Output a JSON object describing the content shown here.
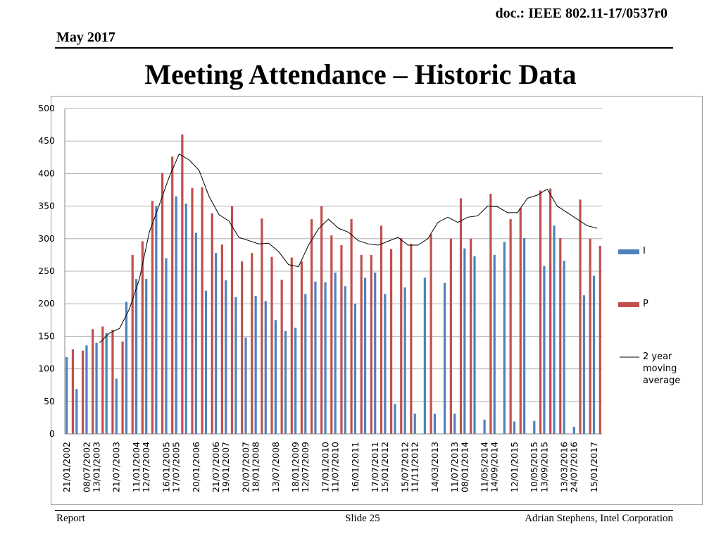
{
  "header": {
    "doc": "doc.: IEEE 802.11-17/0537r0",
    "date": "May 2017"
  },
  "title": "Meeting Attendance – Historic Data",
  "footer": {
    "left": "Report",
    "center": "Slide 25",
    "right": "Adrian Stephens, Intel Corporation"
  },
  "chart_data": {
    "type": "bar",
    "categories": [
      "21/01/2002",
      null,
      "08/07/2002",
      "13/01/2003",
      null,
      "21/07/2003",
      null,
      "11/01/2004",
      "12/07/2004",
      null,
      "16/01/2005",
      "17/07/2005",
      null,
      "20/01/2006",
      null,
      "21/07/2006",
      "19/01/2007",
      null,
      "20/07/2007",
      "18/01/2008",
      null,
      "13/07/2008",
      null,
      "18/01/2009",
      "12/07/2009",
      null,
      "17/01/2010",
      "11/07/2010",
      null,
      "16/01/2011",
      null,
      "17/07/2011",
      "15/01/2012",
      null,
      "15/07/2012",
      "11/11/2012",
      null,
      "14/03/2013",
      null,
      "11/07/2013",
      "08/01/2014",
      null,
      "11/05/2014",
      "14/09/2014",
      null,
      "12/01/2015",
      null,
      "10/05/2015",
      "13/09/2015",
      null,
      "13/03/2016",
      "24/07/2016",
      null,
      "15/01/2017"
    ],
    "series": [
      {
        "name": "I",
        "color": "#4f81bd",
        "values": [
          118,
          69,
          136,
          140,
          155,
          85,
          203,
          238,
          238,
          350,
          270,
          365,
          354,
          309,
          220,
          278,
          236,
          210,
          148,
          212,
          204,
          175,
          158,
          163,
          215,
          234,
          233,
          248,
          227,
          200,
          240,
          248,
          215,
          46,
          225,
          31,
          240,
          31,
          232,
          31,
          285,
          273,
          22,
          275,
          295,
          19,
          301,
          20,
          258,
          320,
          266,
          11,
          213,
          243
        ]
      },
      {
        "name": "P",
        "color": "#c0504d",
        "values": [
          130,
          128,
          161,
          165,
          160,
          142,
          275,
          296,
          358,
          401,
          426,
          460,
          378,
          379,
          339,
          291,
          350,
          265,
          278,
          331,
          272,
          237,
          271,
          265,
          330,
          350,
          305,
          290,
          330,
          275,
          275,
          320,
          284,
          301,
          292,
          null,
          307,
          null,
          300,
          362,
          300,
          null,
          369,
          null,
          330,
          347,
          null,
          374,
          377,
          301,
          null,
          360,
          300,
          289
        ]
      },
      {
        "name": "2 year moving average",
        "type": "line",
        "color": "#000000",
        "values": [
          null,
          null,
          null,
          140,
          155,
          162,
          192,
          238,
          310,
          352,
          395,
          430,
          421,
          405,
          365,
          337,
          327,
          302,
          297,
          292,
          293,
          280,
          260,
          257,
          290,
          315,
          330,
          316,
          310,
          297,
          292,
          290,
          296,
          302,
          290,
          290,
          300,
          325,
          333,
          325,
          333,
          335,
          350,
          349,
          340,
          340,
          362,
          367,
          376,
          350,
          340,
          330,
          320,
          316
        ]
      }
    ],
    "ylim": [
      0,
      500
    ],
    "yticks": [
      0,
      50,
      100,
      150,
      200,
      250,
      300,
      350,
      400,
      450,
      500
    ],
    "grid": true,
    "legend": "right"
  }
}
